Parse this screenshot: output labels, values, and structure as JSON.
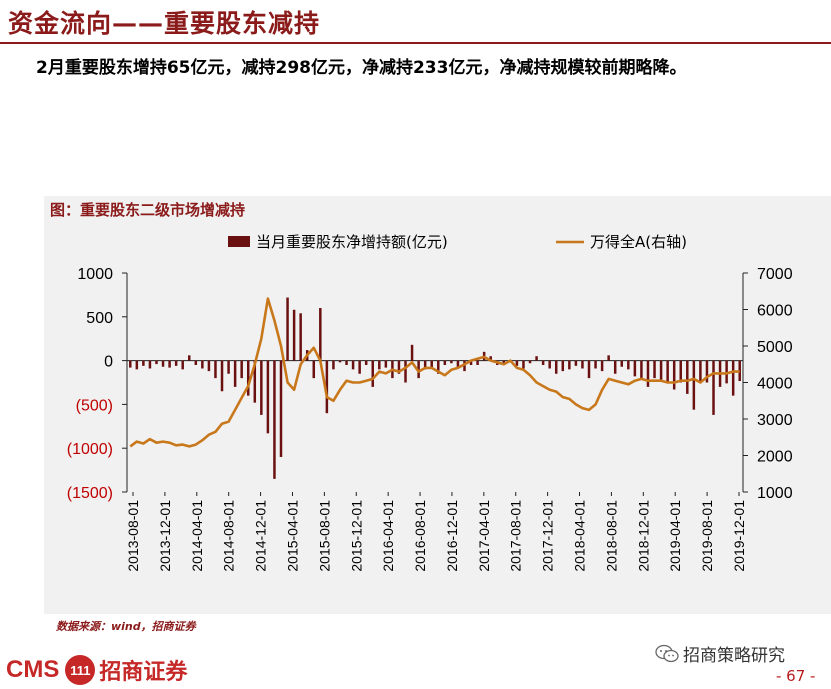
{
  "page": {
    "title": "资金流向——重要股东减持",
    "summary": "2月重要股东增持65亿元，减持298亿元，净减持233亿元，净减持规模较前期略降。",
    "figure_title": "图：重要股东二级市场增减持",
    "source": "数据来源：wind，招商证券",
    "footer": {
      "cms": "CMS",
      "coin": "111",
      "brand": "招商证券",
      "wechat": "招商策略研究",
      "page_number": "- 67 -"
    },
    "colors": {
      "accent": "#8b1a1a",
      "bar": "#6b1010",
      "line": "#c8781a",
      "negative_tick": "#c00000"
    }
  },
  "chart_data": {
    "type": "bar+line",
    "title": "",
    "legend": [
      "当月重要股东净增持额(亿元)",
      "万得全A(右轴)"
    ],
    "legend_position": "top",
    "left_axis": {
      "range": [
        -1500,
        1000
      ],
      "ticks": [
        "1000",
        "500",
        "0",
        "(500)",
        "(1000)",
        "(1500)"
      ],
      "tick_values": [
        1000,
        500,
        0,
        -500,
        -1000,
        -1500
      ]
    },
    "right_axis": {
      "range": [
        1000,
        7000
      ],
      "ticks": [
        "7000",
        "6000",
        "5000",
        "4000",
        "3000",
        "2000",
        "1000"
      ],
      "tick_values": [
        7000,
        6000,
        5000,
        4000,
        3000,
        2000,
        1000
      ]
    },
    "x_tick_labels": [
      "2013-08-01",
      "2013-12-01",
      "2014-04-01",
      "2014-08-01",
      "2014-12-01",
      "2015-04-01",
      "2015-08-01",
      "2015-12-01",
      "2016-04-01",
      "2016-08-01",
      "2016-12-01",
      "2017-04-01",
      "2017-08-01",
      "2017-12-01",
      "2018-04-01",
      "2018-08-01",
      "2018-12-01",
      "2019-04-01",
      "2019-08-01",
      "2019-12-01"
    ],
    "series": [
      {
        "name": "当月重要股东净增持额(亿元)",
        "kind": "bar",
        "values": [
          -80,
          -100,
          -60,
          -90,
          -40,
          -70,
          -80,
          -60,
          -100,
          60,
          -50,
          -90,
          -120,
          -200,
          -350,
          -150,
          -300,
          -200,
          -400,
          -480,
          -620,
          -830,
          -1350,
          -1100,
          720,
          580,
          540,
          120,
          -200,
          600,
          -600,
          -100,
          -20,
          -50,
          -100,
          -150,
          -50,
          -300,
          -100,
          -80,
          -200,
          -150,
          -250,
          180,
          -200,
          -100,
          -80,
          -150,
          -50,
          -30,
          -80,
          -120,
          -50,
          -50,
          100,
          50,
          -50,
          -40,
          -20,
          -60,
          -90,
          -30,
          50,
          -50,
          -90,
          -150,
          -120,
          -100,
          -60,
          -90,
          -200,
          -90,
          -120,
          60,
          -150,
          -70,
          -100,
          -180,
          -200,
          -300,
          -200,
          -220,
          -240,
          -330,
          -250,
          -380,
          -560,
          -240,
          -250,
          -620,
          -300,
          -260,
          -400,
          -233
        ]
      },
      {
        "name": "万得全A(右轴)",
        "kind": "line",
        "values": [
          2250,
          2380,
          2330,
          2450,
          2350,
          2380,
          2350,
          2280,
          2300,
          2250,
          2300,
          2420,
          2570,
          2650,
          2870,
          2930,
          3250,
          3580,
          3900,
          4500,
          5200,
          6300,
          5700,
          5000,
          4000,
          3800,
          4500,
          4750,
          4950,
          4600,
          3600,
          3500,
          3800,
          4050,
          4000,
          4000,
          4050,
          4100,
          4300,
          4250,
          4350,
          4300,
          4400,
          4550,
          4300,
          4400,
          4400,
          4300,
          4200,
          4350,
          4400,
          4500,
          4600,
          4650,
          4700,
          4600,
          4550,
          4500,
          4600,
          4400,
          4350,
          4200,
          4000,
          3900,
          3800,
          3750,
          3600,
          3550,
          3400,
          3300,
          3250,
          3400,
          3800,
          4100,
          4050,
          4000,
          3950,
          4050,
          4100,
          4050,
          4050,
          4050,
          4000,
          4000,
          4050,
          4050,
          4100,
          4000,
          4150,
          4250,
          4250,
          4250,
          4300,
          4300
        ]
      }
    ]
  }
}
